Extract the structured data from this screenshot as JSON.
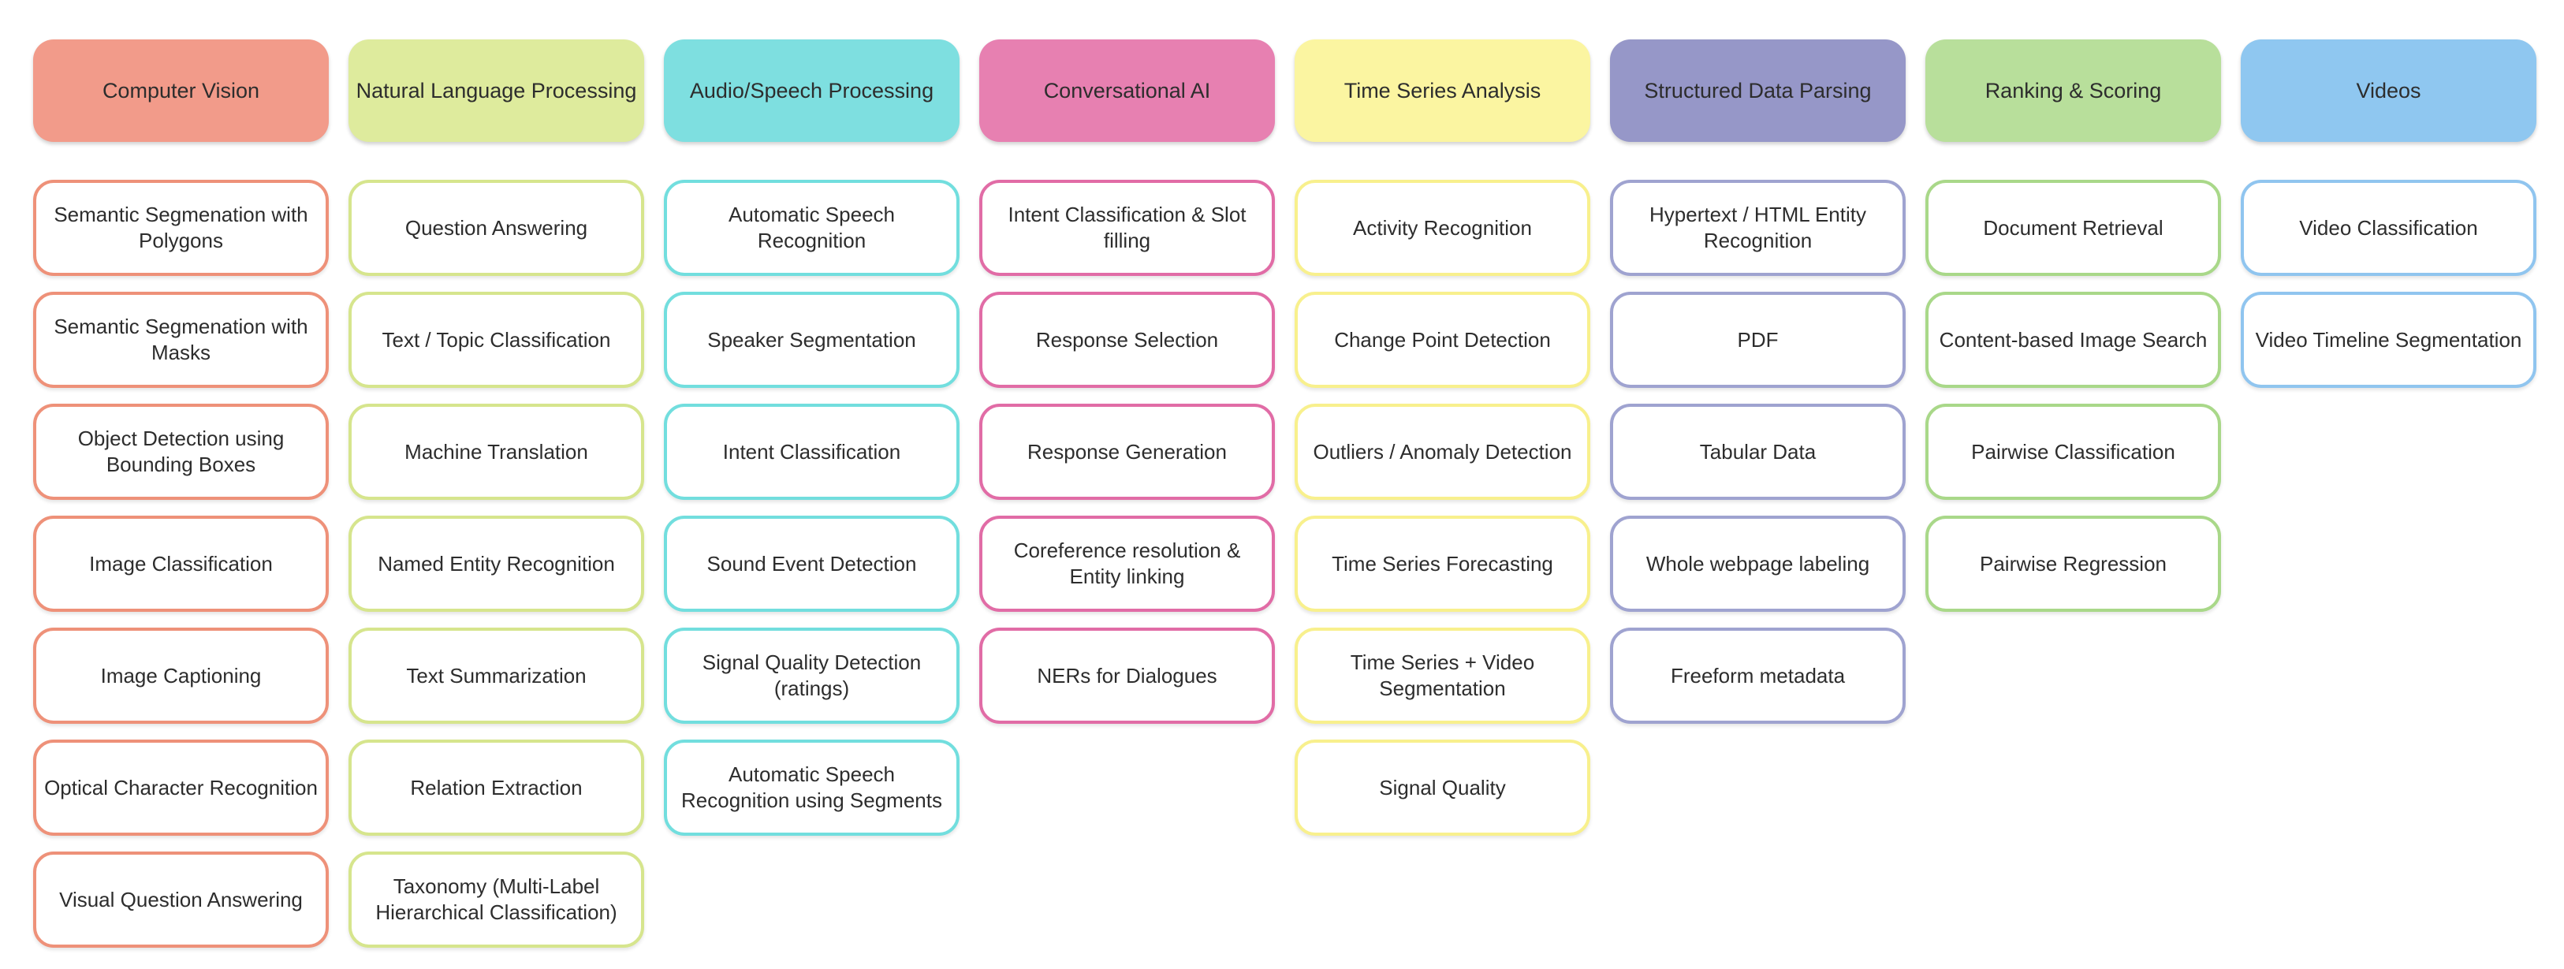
{
  "categories": [
    {
      "name": "Computer Vision",
      "fill": "#F29B8A",
      "border": "#EE9179",
      "tasks": [
        "Semantic Segmenation with Polygons",
        "Semantic Segmenation with Masks",
        "Object Detection using Bounding Boxes",
        "Image Classification",
        "Image Captioning",
        "Optical Character Recognition",
        "Visual Question Answering"
      ]
    },
    {
      "name": "Natural Language Processing",
      "fill": "#DEEB9D",
      "border": "#D6E58D",
      "tasks": [
        "Question Answering",
        "Text / Topic Classification",
        "Machine Translation",
        "Named Entity Recognition",
        "Text Summarization",
        "Relation Extraction",
        "Taxonomy (Multi-Label Hierarchical Classification)"
      ]
    },
    {
      "name": "Audio/Speech Processing",
      "fill": "#7EDFE0",
      "border": "#72DEDE",
      "tasks": [
        "Automatic Speech Recognition",
        "Speaker Segmentation",
        "Intent Classification",
        "Sound Event Detection",
        "Signal Quality Detection (ratings)",
        "Automatic Speech Recognition using Segments"
      ]
    },
    {
      "name": "Conversational AI",
      "fill": "#E780B1",
      "border": "#E16CA6",
      "tasks": [
        "Intent Classification & Slot filling",
        "Response Selection",
        "Response Generation",
        "Coreference resolution & Entity linking",
        "NERs for Dialogues"
      ]
    },
    {
      "name": "Time Series Analysis",
      "fill": "#FBF5A1",
      "border": "#F8F08D",
      "tasks": [
        "Activity Recognition",
        "Change Point Detection",
        "Outliers / Anomaly Detection",
        "Time Series Forecasting",
        "Time Series + Video Segmentation",
        "Signal Quality"
      ]
    },
    {
      "name": "Structured Data Parsing",
      "fill": "#9697C8",
      "border": "#9FA3D0",
      "tasks": [
        "Hypertext / HTML Entity Recognition",
        "PDF",
        "Tabular Data",
        "Whole webpage labeling",
        "Freeform metadata"
      ]
    },
    {
      "name": "Ranking & Scoring",
      "fill": "#B8DF9B",
      "border": "#A9D889",
      "tasks": [
        "Document Retrieval",
        "Content-based Image Search",
        "Pairwise Classification",
        "Pairwise Regression"
      ]
    },
    {
      "name": "Videos",
      "fill": "#8FC7F0",
      "border": "#90C5EF",
      "tasks": [
        "Video Classification",
        "Video Timeline Segmentation"
      ]
    }
  ]
}
